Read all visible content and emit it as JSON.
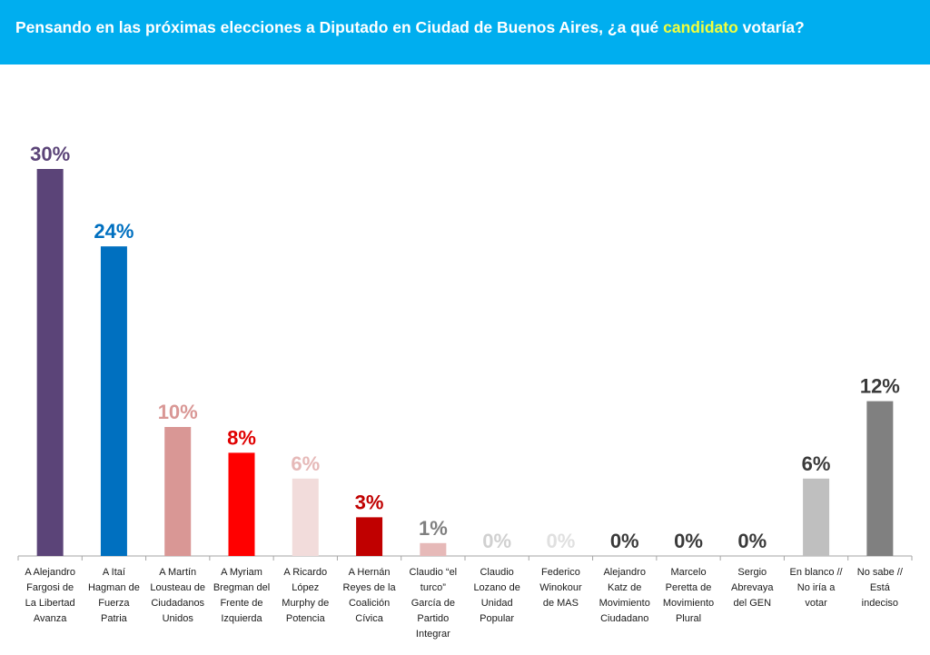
{
  "header": {
    "title_before": "Pensando en las próximas elecciones a Diputado en Ciudad de Buenos Aires, ¿a qué ",
    "title_highlight": "candidato",
    "title_after": " votaría?",
    "background_color": "#00AEEF",
    "highlight_color": "#F2FF3C"
  },
  "chart_data": {
    "type": "bar",
    "ylim": [
      0,
      30
    ],
    "grid": false,
    "legend": "none",
    "categories": [
      [
        "A Alejandro",
        "Fargosi de",
        "La Libertad",
        "Avanza"
      ],
      [
        "A Itaí",
        "Hagman de",
        "Fuerza",
        "Patria"
      ],
      [
        "A Martín",
        "Lousteau de",
        "Ciudadanos",
        "Unidos"
      ],
      [
        "A Myriam",
        "Bregman del",
        "Frente de",
        "Izquierda"
      ],
      [
        "A Ricardo",
        "López",
        "Murphy de",
        "Potencia"
      ],
      [
        "A Hernán",
        "Reyes de la",
        "Coalición",
        "Cívica"
      ],
      [
        "Claudio “el",
        "turco”",
        "García de",
        "Partido",
        "Integrar"
      ],
      [
        "Claudio",
        "Lozano de",
        "Unidad",
        "Popular"
      ],
      [
        "Federico",
        "Winokour",
        "de MAS"
      ],
      [
        "Alejandro",
        "Katz de",
        "Movimiento",
        "Ciudadano"
      ],
      [
        "Marcelo",
        "Peretta de",
        "Movimiento",
        "Plural"
      ],
      [
        "Sergio",
        "Abrevaya",
        "del GEN"
      ],
      [
        "En blanco //",
        "No iría a",
        "votar"
      ],
      [
        "No sabe //",
        "Está",
        "indeciso"
      ]
    ],
    "values": [
      30,
      24,
      10,
      8,
      6,
      3,
      1,
      0,
      0,
      0,
      0,
      0,
      6,
      12
    ],
    "value_labels": [
      "30%",
      "24%",
      "10%",
      "8%",
      "6%",
      "3%",
      "1%",
      "0%",
      "0%",
      "0%",
      "0%",
      "0%",
      "6%",
      "12%"
    ],
    "bar_colors": [
      "#5B4478",
      "#0070C0",
      "#D99795",
      "#FF0000",
      "#F2DCDB",
      "#C00000",
      "#E6B9B8",
      "#E6B9B8",
      "#F2DCDB",
      "#3A3A3A",
      "#3A3A3A",
      "#3A3A3A",
      "#BFBFBF",
      "#808080"
    ],
    "label_colors": [
      "#5B4478",
      "#0070C0",
      "#D99795",
      "#E00000",
      "#E6B9B8",
      "#C00000",
      "#7F7F7F",
      "#D0D0D0",
      "#E0E0E0",
      "#3A3A3A",
      "#3A3A3A",
      "#3A3A3A",
      "#3A3A3A",
      "#3A3A3A"
    ]
  }
}
